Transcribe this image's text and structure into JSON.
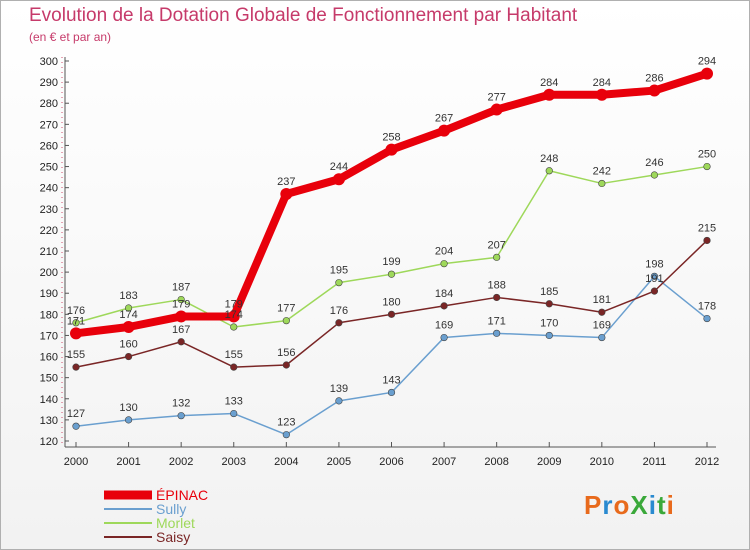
{
  "header": {
    "title": "Evolution de la Dotation Globale de Fonctionnement par Habitant",
    "subtitle": "(en € et par an)"
  },
  "logo": {
    "text": "ProXiti",
    "colors": [
      "#e86a1c",
      "#2a8ad0",
      "#e86a1c",
      "#3aa83a",
      "#2a8ad0",
      "#3aa83a",
      "#e86a1c"
    ]
  },
  "chart_data": {
    "type": "line",
    "title": "Evolution de la Dotation Globale de Fonctionnement par Habitant",
    "subtitle": "(en € et par an)",
    "xlabel": "",
    "ylabel": "",
    "x": [
      "2000",
      "2001",
      "2002",
      "2003",
      "2004",
      "2005",
      "2006",
      "2007",
      "2008",
      "2009",
      "2010",
      "2011",
      "2012"
    ],
    "ylim": [
      120,
      300
    ],
    "yticks": [
      120,
      130,
      140,
      150,
      160,
      170,
      180,
      190,
      200,
      210,
      220,
      230,
      240,
      250,
      260,
      270,
      280,
      290,
      300
    ],
    "grid": false,
    "legend_position": "bottom-left",
    "series": [
      {
        "name": "ÉPINAC",
        "color": "#e8000b",
        "emphasis": true,
        "values": [
          171,
          174,
          179,
          179,
          237,
          244,
          258,
          267,
          277,
          284,
          284,
          286,
          294
        ],
        "labels": [
          "171",
          "174",
          "179",
          "179",
          "237",
          "244",
          "258",
          "267",
          "277",
          "284",
          "284",
          "286",
          "294"
        ]
      },
      {
        "name": "Sully",
        "color": "#6a9fcf",
        "emphasis": false,
        "values": [
          127,
          130,
          132,
          133,
          123,
          139,
          143,
          169,
          171,
          170,
          169,
          198,
          178
        ],
        "labels": [
          "127",
          "130",
          "132",
          "133",
          "123",
          "139",
          "143",
          "169",
          "171",
          "170",
          "169",
          "198",
          "178"
        ]
      },
      {
        "name": "Morlet",
        "color": "#9ed85a",
        "emphasis": false,
        "values": [
          176,
          183,
          187,
          174,
          177,
          195,
          199,
          204,
          207,
          248,
          242,
          246,
          250
        ],
        "labels": [
          "176",
          "183",
          "187",
          "174",
          "177",
          "195",
          "199",
          "204",
          "207",
          "248",
          "242",
          "246",
          "250"
        ]
      },
      {
        "name": "Saisy",
        "color": "#7a2626",
        "emphasis": false,
        "values": [
          155,
          160,
          167,
          155,
          156,
          176,
          180,
          184,
          188,
          185,
          181,
          191,
          215
        ],
        "labels": [
          "155",
          "160",
          "167",
          "155",
          "156",
          "176",
          "180",
          "184",
          "188",
          "185",
          "181",
          "191",
          "215"
        ]
      }
    ]
  }
}
